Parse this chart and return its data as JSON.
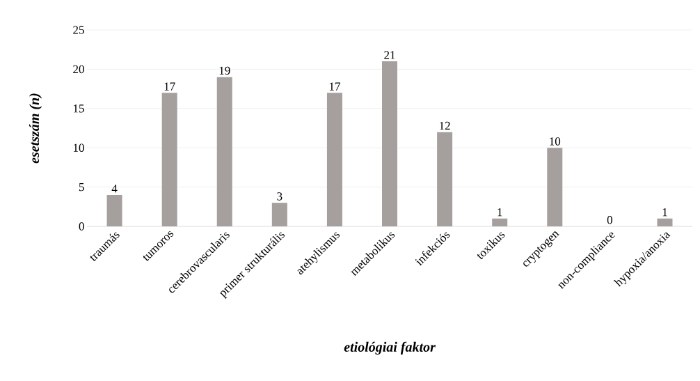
{
  "chart_data": {
    "type": "bar",
    "xlabel": "etiológiai faktor",
    "ylabel": "esetszám (n)",
    "categories": [
      "traumás",
      "tumoros",
      "cerebrovascularis",
      "primer strukturális",
      "atehylismus",
      "metabolikus",
      "infekciós",
      "toxikus",
      "cryptogen",
      "non-compliance",
      "hypoxia/anoxia"
    ],
    "values": [
      4,
      17,
      19,
      3,
      17,
      21,
      12,
      1,
      10,
      0,
      1
    ],
    "color": "#a5a09e",
    "ylim": [
      0,
      25
    ],
    "yticks": [
      0,
      5,
      10,
      15,
      20,
      25
    ],
    "grid": "y",
    "data_labels": true
  }
}
